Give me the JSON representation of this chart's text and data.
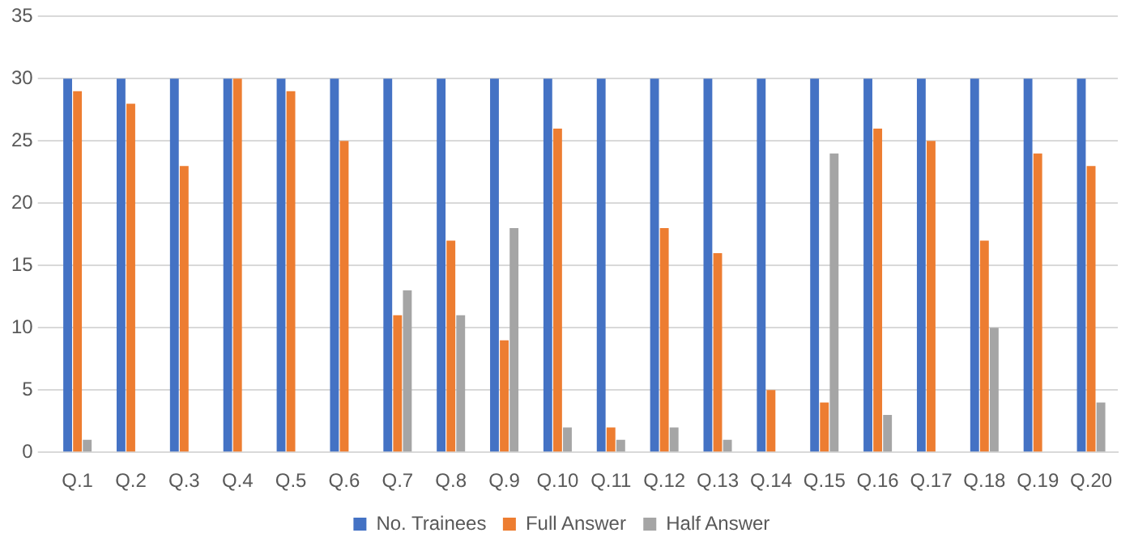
{
  "chart_data": {
    "type": "bar",
    "categories": [
      "Q.1",
      "Q.2",
      "Q.3",
      "Q.4",
      "Q.5",
      "Q.6",
      "Q.7",
      "Q.8",
      "Q.9",
      "Q.10",
      "Q.11",
      "Q.12",
      "Q.13",
      "Q.14",
      "Q.15",
      "Q.16",
      "Q.17",
      "Q.18",
      "Q.19",
      "Q.20"
    ],
    "series": [
      {
        "name": "No. Trainees",
        "color": "#4472c4",
        "values": [
          30,
          30,
          30,
          30,
          30,
          30,
          30,
          30,
          30,
          30,
          30,
          30,
          30,
          30,
          30,
          30,
          30,
          30,
          30,
          30
        ]
      },
      {
        "name": "Full Answer",
        "color": "#ed7d31",
        "values": [
          29,
          28,
          23,
          30,
          29,
          25,
          11,
          17,
          9,
          26,
          2,
          18,
          16,
          5,
          4,
          26,
          25,
          17,
          24,
          23
        ]
      },
      {
        "name": "Half Answer",
        "color": "#a5a5a5",
        "values": [
          1,
          0,
          0,
          0,
          0,
          0,
          13,
          11,
          18,
          2,
          1,
          2,
          1,
          0,
          24,
          3,
          0,
          10,
          0,
          4
        ]
      }
    ],
    "ylim": [
      0,
      35
    ],
    "yticks": [
      0,
      5,
      10,
      15,
      20,
      25,
      30,
      35
    ],
    "grid": "y",
    "legend": "bottom"
  }
}
